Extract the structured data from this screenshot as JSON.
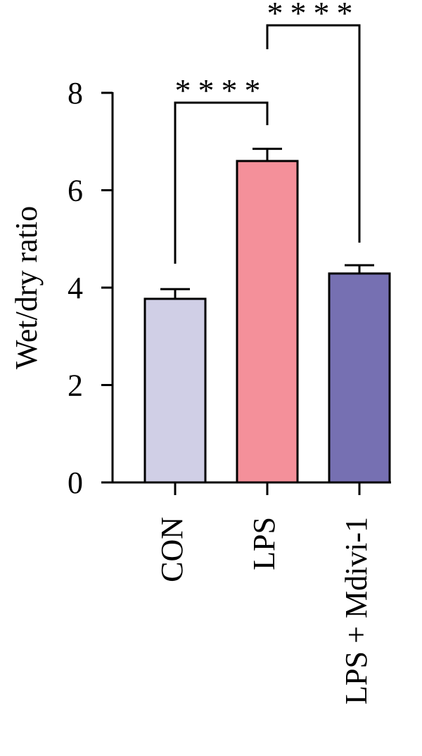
{
  "chart_data": {
    "type": "bar",
    "y_label": "Wet/dry ratio",
    "categories": [
      "CON",
      "LPS",
      "LPS + Mdivi-1"
    ],
    "values": [
      3.77,
      6.6,
      4.29
    ],
    "errors": [
      0.2,
      0.25,
      0.17
    ],
    "colors": [
      "#d0cfe6",
      "#f4909a",
      "#7670b2"
    ],
    "ylim": [
      0,
      8
    ],
    "yticks": [
      0,
      2,
      4,
      6,
      8
    ],
    "significance": [
      {
        "from": 0,
        "to": 1,
        "label": "****"
      },
      {
        "from": 1,
        "to": 2,
        "label": "****"
      }
    ]
  }
}
